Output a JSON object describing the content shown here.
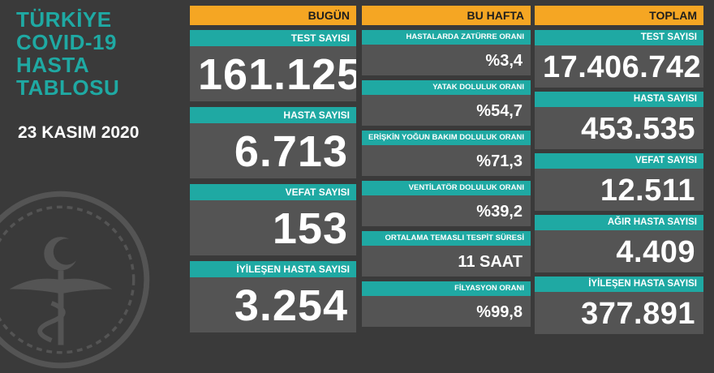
{
  "title": {
    "lines": [
      "TÜRKİYE",
      "COVID-19",
      "HASTA",
      "TABLOSU"
    ]
  },
  "date": "23 KASIM 2020",
  "colors": {
    "teal": "#1fa9a3",
    "orange": "#f5a623",
    "card_bg": "#545454",
    "page_bg": "#3a3a3a"
  },
  "today": {
    "header": "BUGÜN",
    "cards": [
      {
        "label": "TEST SAYISI",
        "value": "161.125"
      },
      {
        "label": "HASTA SAYISI",
        "value": "6.713"
      },
      {
        "label": "VEFAT SAYISI",
        "value": "153"
      },
      {
        "label": "İYİLEŞEN HASTA SAYISI",
        "value": "3.254"
      }
    ]
  },
  "week": {
    "header": "BU HAFTA",
    "cards": [
      {
        "label": "HASTALARDA ZATÜRRE ORANI",
        "value": "%3,4"
      },
      {
        "label": "YATAK DOLULUK ORANI",
        "value": "%54,7"
      },
      {
        "label": "ERİŞKİN YOĞUN BAKIM DOLULUK ORANI",
        "value": "%71,3"
      },
      {
        "label": "VENTİLATÖR DOLULUK ORANI",
        "value": "%39,2"
      },
      {
        "label": "ORTALAMA TEMASLI TESPİT SÜRESİ",
        "value": "11 SAAT"
      },
      {
        "label": "FİLYASYON ORANI",
        "value": "%99,8"
      }
    ]
  },
  "total": {
    "header": "TOPLAM",
    "cards": [
      {
        "label": "TEST SAYISI",
        "value": "17.406.742"
      },
      {
        "label": "HASTA SAYISI",
        "value": "453.535"
      },
      {
        "label": "VEFAT SAYISI",
        "value": "12.511"
      },
      {
        "label": "AĞIR HASTA SAYISI",
        "value": "4.409"
      },
      {
        "label": "İYİLEŞEN HASTA SAYISI",
        "value": "377.891"
      }
    ]
  }
}
